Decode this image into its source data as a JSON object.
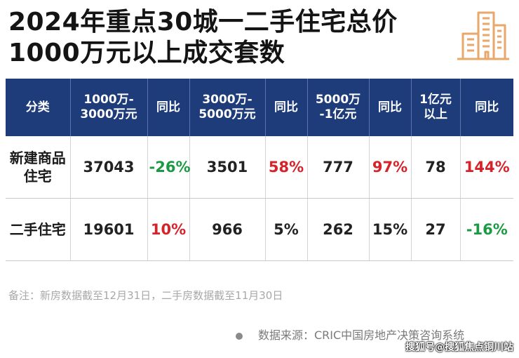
{
  "title": {
    "line1": "2024年重点30城一二手住宅总价",
    "line2": "1000万元以上成交套数"
  },
  "logo": {
    "icon": "building-icon",
    "color": "#e8a76b"
  },
  "table": {
    "headers": [
      "分类",
      "1000万-\n3000万元",
      "同比",
      "3000万-\n5000万元",
      "同比",
      "5000万\n-1亿元",
      "同比",
      "1亿元\n以上",
      "同比"
    ],
    "rows": [
      {
        "category": "新建商品\n住宅",
        "cells": [
          {
            "value": "37043",
            "tone": "black"
          },
          {
            "value": "-26%",
            "tone": "green"
          },
          {
            "value": "3501",
            "tone": "black"
          },
          {
            "value": "58%",
            "tone": "red"
          },
          {
            "value": "777",
            "tone": "black"
          },
          {
            "value": "97%",
            "tone": "red"
          },
          {
            "value": "78",
            "tone": "black"
          },
          {
            "value": "144%",
            "tone": "red"
          }
        ]
      },
      {
        "category": "二手住宅",
        "cells": [
          {
            "value": "19601",
            "tone": "black"
          },
          {
            "value": "10%",
            "tone": "red"
          },
          {
            "value": "966",
            "tone": "black"
          },
          {
            "value": "5%",
            "tone": "black"
          },
          {
            "value": "262",
            "tone": "black"
          },
          {
            "value": "15%",
            "tone": "black"
          },
          {
            "value": "27",
            "tone": "black"
          },
          {
            "value": "-16%",
            "tone": "green"
          }
        ]
      }
    ],
    "colors": {
      "header_bg": "#1f3c7a",
      "up": "#d6232a",
      "down": "#1b9a43"
    }
  },
  "note": "备注：新房数据截至12月31日，二手房数据截至11月30日",
  "source": "数据来源：CRIC中国房地产决策咨询系统",
  "watermark": "搜狐号@搜狐焦点铜川站"
}
